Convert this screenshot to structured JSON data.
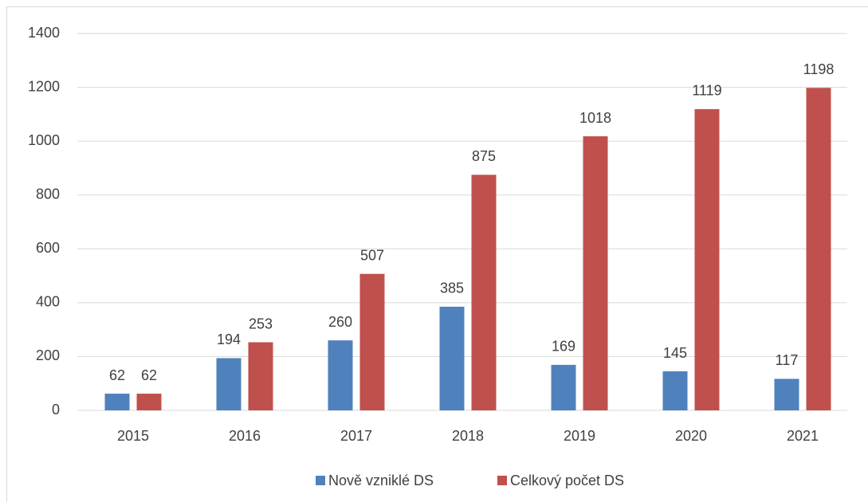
{
  "chart_data": {
    "type": "bar",
    "categories": [
      "2015",
      "2016",
      "2017",
      "2018",
      "2019",
      "2020",
      "2021"
    ],
    "series": [
      {
        "name": "Nově vzniklé DS",
        "color": "#4f81bd",
        "values": [
          62,
          194,
          260,
          385,
          169,
          145,
          117
        ]
      },
      {
        "name": "Celkový počet DS",
        "color": "#c0504d",
        "values": [
          62,
          253,
          507,
          875,
          1018,
          1119,
          1198
        ]
      }
    ],
    "ylim": [
      0,
      1400
    ],
    "yticks": [
      0,
      200,
      400,
      600,
      800,
      1000,
      1200,
      1400
    ],
    "grid": true,
    "legend": "bottom"
  }
}
